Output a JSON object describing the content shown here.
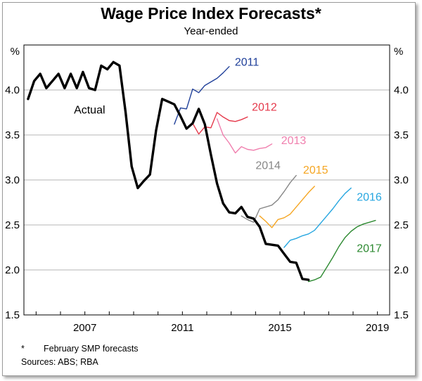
{
  "chart_data": {
    "type": "line",
    "title": "Wage Price Index Forecasts*",
    "subtitle": "Year-ended",
    "y_unit_left": "%",
    "y_unit_right": "%",
    "ylim": [
      1.5,
      4.5
    ],
    "yticks": [
      "1.5",
      "2.0",
      "2.5",
      "3.0",
      "3.5",
      "4.0"
    ],
    "xlim": [
      2004.5,
      2019.5
    ],
    "xtick_labels": [
      "2007",
      "2011",
      "2015",
      "2019"
    ],
    "xtick_values": [
      2007.0,
      2011.0,
      2015.0,
      2019.0
    ],
    "grid": true,
    "series": [
      {
        "name": "Actual",
        "color": "#000000",
        "x": [
          2004.67,
          2004.92,
          2005.17,
          2005.42,
          2005.67,
          2005.92,
          2006.17,
          2006.42,
          2006.67,
          2006.92,
          2007.17,
          2007.42,
          2007.67,
          2007.92,
          2008.17,
          2008.42,
          2008.67,
          2008.92,
          2009.17,
          2009.42,
          2009.67,
          2009.92,
          2010.17,
          2010.42,
          2010.67,
          2010.92,
          2011.17,
          2011.42,
          2011.67,
          2011.92,
          2012.17,
          2012.42,
          2012.67,
          2012.92,
          2013.17,
          2013.42,
          2013.67,
          2013.92,
          2014.17,
          2014.42,
          2014.67,
          2014.92,
          2015.17,
          2015.42,
          2015.67,
          2015.92,
          2016.17
        ],
        "y": [
          3.9,
          4.1,
          4.18,
          4.02,
          4.1,
          4.18,
          4.02,
          4.18,
          4.02,
          4.2,
          4.02,
          4.0,
          4.27,
          4.23,
          4.31,
          4.27,
          3.75,
          3.15,
          2.91,
          2.99,
          3.06,
          3.55,
          3.9,
          3.87,
          3.84,
          3.71,
          3.57,
          3.63,
          3.79,
          3.62,
          3.28,
          2.96,
          2.74,
          2.64,
          2.63,
          2.7,
          2.59,
          2.57,
          2.48,
          2.29,
          2.28,
          2.27,
          2.18,
          2.09,
          2.08,
          1.9,
          1.89
        ]
      },
      {
        "name": "2011",
        "color": "#20409a",
        "x": [
          2010.67,
          2010.92,
          2011.17,
          2011.42,
          2011.67,
          2011.92,
          2012.17,
          2012.42,
          2012.67,
          2012.92
        ],
        "y": [
          3.62,
          3.8,
          3.79,
          4.01,
          3.97,
          4.05,
          4.09,
          4.13,
          4.19,
          4.26
        ]
      },
      {
        "name": "2012",
        "color": "#e5394b",
        "x": [
          2011.42,
          2011.67,
          2011.92,
          2012.17,
          2012.42,
          2012.67,
          2012.92,
          2013.17,
          2013.42,
          2013.67
        ],
        "y": [
          3.63,
          3.51,
          3.59,
          3.58,
          3.75,
          3.7,
          3.66,
          3.65,
          3.67,
          3.7
        ]
      },
      {
        "name": "2013",
        "color": "#f07fae",
        "x": [
          2012.42,
          2012.67,
          2012.92,
          2013.17,
          2013.42,
          2013.67,
          2013.92,
          2014.17,
          2014.42,
          2014.67
        ],
        "y": [
          3.68,
          3.5,
          3.41,
          3.3,
          3.37,
          3.34,
          3.33,
          3.35,
          3.36,
          3.4
        ]
      },
      {
        "name": "2014",
        "color": "#888888",
        "x": [
          2013.42,
          2013.67,
          2013.92,
          2014.17,
          2014.42,
          2014.67,
          2014.92,
          2015.17,
          2015.42,
          2015.67
        ],
        "y": [
          2.6,
          2.56,
          2.53,
          2.68,
          2.7,
          2.72,
          2.78,
          2.87,
          2.97,
          3.05
        ]
      },
      {
        "name": "2015",
        "color": "#f5a623",
        "x": [
          2014.17,
          2014.42,
          2014.67,
          2014.92,
          2015.17,
          2015.42,
          2015.67,
          2015.92,
          2016.17,
          2016.42
        ],
        "y": [
          2.6,
          2.54,
          2.47,
          2.56,
          2.58,
          2.62,
          2.7,
          2.78,
          2.86,
          2.93
        ]
      },
      {
        "name": "2016",
        "color": "#26a6e0",
        "x": [
          2015.17,
          2015.42,
          2015.67,
          2015.92,
          2016.17,
          2016.42,
          2016.67,
          2016.92,
          2017.17,
          2017.42,
          2017.67,
          2017.92
        ],
        "y": [
          2.25,
          2.33,
          2.35,
          2.38,
          2.4,
          2.44,
          2.52,
          2.6,
          2.68,
          2.77,
          2.85,
          2.91
        ]
      },
      {
        "name": "2017",
        "color": "#2e8a32",
        "x": [
          2016.17,
          2016.42,
          2016.67,
          2016.92,
          2017.17,
          2017.42,
          2017.67,
          2017.92,
          2018.17,
          2018.42,
          2018.67,
          2018.92
        ],
        "y": [
          1.87,
          1.89,
          1.92,
          2.03,
          2.14,
          2.26,
          2.36,
          2.43,
          2.48,
          2.51,
          2.53,
          2.55
        ]
      }
    ],
    "labels": [
      {
        "text": "Actual",
        "series": "Actual"
      },
      {
        "text": "2011",
        "series": "2011"
      },
      {
        "text": "2012",
        "series": "2012"
      },
      {
        "text": "2013",
        "series": "2013"
      },
      {
        "text": "2014",
        "series": "2014"
      },
      {
        "text": "2015",
        "series": "2015"
      },
      {
        "text": "2016",
        "series": "2016"
      },
      {
        "text": "2017",
        "series": "2017"
      }
    ]
  },
  "footnotes": {
    "star": "*",
    "note": "February SMP forecasts",
    "sources": "Sources: ABS; RBA"
  }
}
